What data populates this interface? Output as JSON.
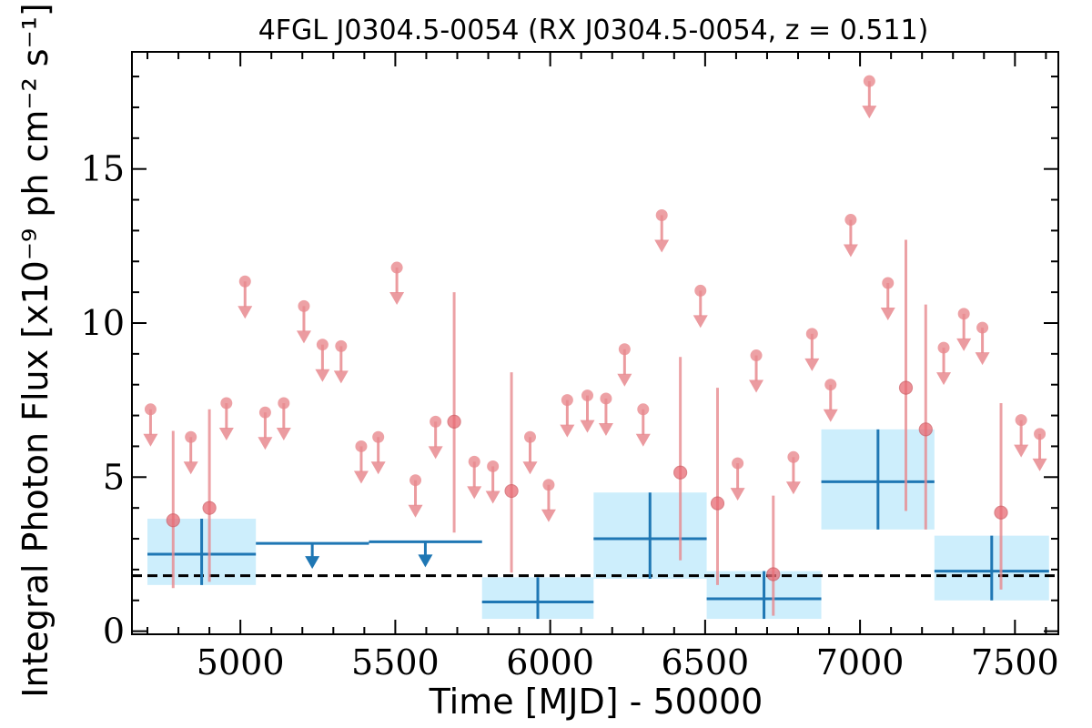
{
  "chart_data": {
    "type": "scatter",
    "title": "4FGL J0304.5-0054 (RX J0304.5-0054, z = 0.511)",
    "xlabel": "Time [MJD] - 50000",
    "ylabel": "Integral Photon Flux [x10⁻⁹ ph cm⁻² s⁻¹]",
    "xlim": [
      4650,
      7640
    ],
    "ylim": [
      -0.1,
      18.8
    ],
    "xticks": [
      5000,
      5500,
      6000,
      6500,
      7000,
      7500
    ],
    "yticks": [
      0,
      5,
      10,
      15
    ],
    "baseline": 1.8,
    "fine_bins": {
      "detections": [
        {
          "x": 4783,
          "y": 3.6,
          "lo": 1.4,
          "hi": 6.5
        },
        {
          "x": 4900,
          "y": 4.0,
          "lo": 1.6,
          "hi": 7.2
        },
        {
          "x": 5690,
          "y": 6.8,
          "lo": 3.2,
          "hi": 11.0
        },
        {
          "x": 5875,
          "y": 4.55,
          "lo": 1.9,
          "hi": 8.4
        },
        {
          "x": 6420,
          "y": 5.15,
          "lo": 2.3,
          "hi": 8.9
        },
        {
          "x": 6540,
          "y": 4.15,
          "lo": 1.5,
          "hi": 7.9
        },
        {
          "x": 6720,
          "y": 1.85,
          "lo": 0.5,
          "hi": 4.4
        },
        {
          "x": 7148,
          "y": 7.9,
          "lo": 3.9,
          "hi": 12.7
        },
        {
          "x": 7212,
          "y": 6.55,
          "lo": 3.3,
          "hi": 10.6
        },
        {
          "x": 7455,
          "y": 3.85,
          "lo": 1.35,
          "hi": 7.4
        }
      ],
      "upper_limits": [
        {
          "x": 4710,
          "y": 7.2
        },
        {
          "x": 4840,
          "y": 6.3
        },
        {
          "x": 4955,
          "y": 7.4
        },
        {
          "x": 5015,
          "y": 11.35
        },
        {
          "x": 5080,
          "y": 7.1
        },
        {
          "x": 5140,
          "y": 7.4
        },
        {
          "x": 5205,
          "y": 10.55
        },
        {
          "x": 5265,
          "y": 9.3
        },
        {
          "x": 5325,
          "y": 9.25
        },
        {
          "x": 5390,
          "y": 6.0
        },
        {
          "x": 5445,
          "y": 6.3
        },
        {
          "x": 5505,
          "y": 11.8
        },
        {
          "x": 5565,
          "y": 4.9
        },
        {
          "x": 5630,
          "y": 6.8
        },
        {
          "x": 5755,
          "y": 5.5
        },
        {
          "x": 5815,
          "y": 5.35
        },
        {
          "x": 5935,
          "y": 6.3
        },
        {
          "x": 5995,
          "y": 4.75
        },
        {
          "x": 6055,
          "y": 7.5
        },
        {
          "x": 6120,
          "y": 7.65
        },
        {
          "x": 6180,
          "y": 7.55
        },
        {
          "x": 6240,
          "y": 9.15
        },
        {
          "x": 6300,
          "y": 7.2
        },
        {
          "x": 6360,
          "y": 13.5
        },
        {
          "x": 6485,
          "y": 11.05
        },
        {
          "x": 6605,
          "y": 5.45
        },
        {
          "x": 6665,
          "y": 8.95
        },
        {
          "x": 6785,
          "y": 5.65
        },
        {
          "x": 6845,
          "y": 9.65
        },
        {
          "x": 6905,
          "y": 8.0
        },
        {
          "x": 6970,
          "y": 13.35
        },
        {
          "x": 7030,
          "y": 17.85
        },
        {
          "x": 7090,
          "y": 11.3
        },
        {
          "x": 7270,
          "y": 9.2
        },
        {
          "x": 7335,
          "y": 10.3
        },
        {
          "x": 7395,
          "y": 9.85
        },
        {
          "x": 7520,
          "y": 6.85
        },
        {
          "x": 7580,
          "y": 6.4
        }
      ]
    },
    "coarse_bins": {
      "detections": [
        {
          "x0": 4700,
          "x1": 5050,
          "xc": 4875,
          "y": 2.5,
          "lo": 1.5,
          "hi": 3.65
        },
        {
          "x0": 5780,
          "x1": 6140,
          "xc": 5960,
          "y": 0.95,
          "lo": 0.4,
          "hi": 1.75
        },
        {
          "x0": 6140,
          "x1": 6505,
          "xc": 6322,
          "y": 3.0,
          "lo": 1.7,
          "hi": 4.5
        },
        {
          "x0": 6505,
          "x1": 6875,
          "xc": 6690,
          "y": 1.05,
          "lo": 0.4,
          "hi": 1.95
        },
        {
          "x0": 6875,
          "x1": 7240,
          "xc": 7058,
          "y": 4.85,
          "lo": 3.3,
          "hi": 6.55
        },
        {
          "x0": 7240,
          "x1": 7610,
          "xc": 7425,
          "y": 1.95,
          "lo": 1.0,
          "hi": 3.1
        }
      ],
      "upper_limits": [
        {
          "x0": 5050,
          "x1": 5415,
          "xc": 5232,
          "y": 2.85
        },
        {
          "x0": 5415,
          "x1": 5780,
          "xc": 5597,
          "y": 2.9
        }
      ]
    },
    "colors": {
      "fine": "#e88a8f",
      "fine_fill": "#e86a73",
      "coarse": "#1f77b4",
      "coarse_fill": "#cdeefc",
      "baseline": "#000000"
    }
  }
}
